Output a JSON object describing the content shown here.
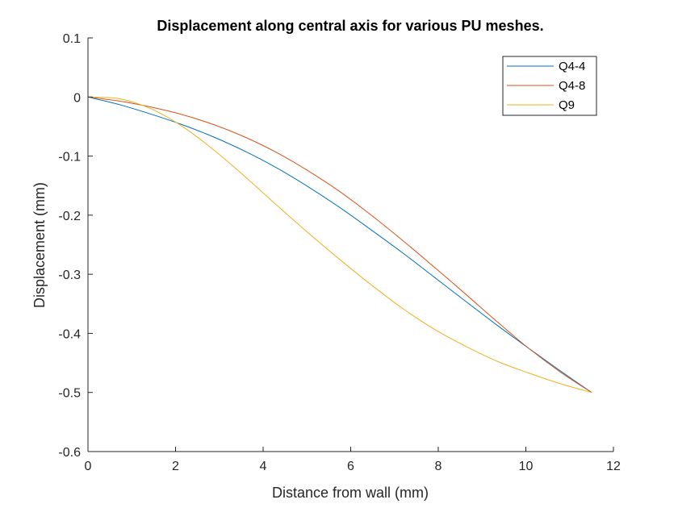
{
  "chart_data": {
    "type": "line",
    "title": "Displacement along central axis for various PU meshes.",
    "xlabel": "Distance from wall (mm)",
    "ylabel": "Displacement (mm)",
    "xlim": [
      0,
      12
    ],
    "ylim": [
      -0.6,
      0.1
    ],
    "xticks": [
      0,
      2,
      4,
      6,
      8,
      10,
      12
    ],
    "yticks": [
      0.1,
      0,
      -0.1,
      -0.2,
      -0.3,
      -0.4,
      -0.5,
      -0.6
    ],
    "xtick_labels": [
      "0",
      "2",
      "4",
      "6",
      "8",
      "10",
      "12"
    ],
    "ytick_labels": [
      "0.1",
      "0",
      "-0.1",
      "-0.2",
      "-0.3",
      "-0.4",
      "-0.5",
      "-0.6"
    ],
    "grid": false,
    "legend_position": "top-right",
    "series": [
      {
        "name": "Q4-4",
        "color": "#0072BD",
        "x": [
          0,
          0.72,
          1.44,
          2.16,
          2.88,
          3.59,
          4.31,
          5.03,
          5.75,
          6.47,
          7.19,
          7.91,
          8.63,
          9.34,
          10.06,
          10.78,
          11.5
        ],
        "y": [
          0,
          -0.013,
          -0.029,
          -0.047,
          -0.068,
          -0.092,
          -0.12,
          -0.152,
          -0.187,
          -0.225,
          -0.264,
          -0.305,
          -0.346,
          -0.386,
          -0.425,
          -0.463,
          -0.5
        ]
      },
      {
        "name": "Q4-8",
        "color": "#D95319",
        "x": [
          0,
          0.72,
          1.44,
          2.16,
          2.88,
          3.59,
          4.31,
          5.03,
          5.75,
          6.47,
          7.19,
          7.91,
          8.63,
          9.34,
          10.06,
          10.78,
          11.5
        ],
        "y": [
          0,
          -0.007,
          -0.017,
          -0.03,
          -0.047,
          -0.068,
          -0.094,
          -0.125,
          -0.16,
          -0.2,
          -0.243,
          -0.288,
          -0.334,
          -0.38,
          -0.425,
          -0.465,
          -0.5
        ]
      },
      {
        "name": "Q9",
        "color": "#EDB120",
        "x": [
          0,
          0.72,
          1.44,
          2.16,
          2.88,
          3.59,
          4.31,
          5.03,
          5.75,
          6.47,
          7.19,
          7.91,
          8.63,
          9.34,
          10.06,
          10.78,
          11.5
        ],
        "y": [
          0,
          -0.003,
          -0.02,
          -0.05,
          -0.09,
          -0.135,
          -0.183,
          -0.23,
          -0.275,
          -0.318,
          -0.358,
          -0.393,
          -0.422,
          -0.447,
          -0.467,
          -0.485,
          -0.5
        ]
      }
    ]
  }
}
